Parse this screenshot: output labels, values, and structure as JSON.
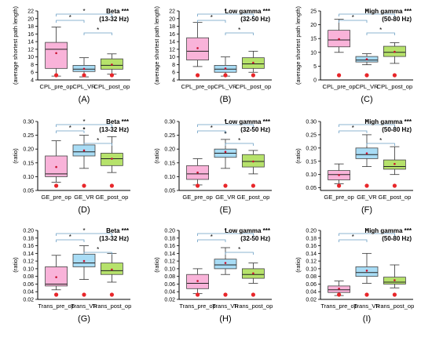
{
  "colors": {
    "pre": "#f9b3d9",
    "vr": "#a8dcf5",
    "post": "#b6e26b",
    "star_dot": "#e8262a",
    "mean_dot": "#c8102e",
    "bracket": "#6a9ec4"
  },
  "chart_data": [
    {
      "type": "box",
      "panel_label": "(A)",
      "band": "Beta",
      "band_stars": "***",
      "band_range": "(13-32 Hz)",
      "ylabel": "(average shortest path length)",
      "ylim": [
        4,
        22
      ],
      "yticks": [
        4,
        6,
        8,
        10,
        12,
        14,
        16,
        18,
        20,
        22
      ],
      "categories": [
        "CPL_pre_op",
        "CPL_VR",
        "CPL_post_op"
      ],
      "boxes": [
        {
          "min": 5,
          "q1": 7,
          "median": 12,
          "q3": 13.8,
          "max": 17.8,
          "mean": 11
        },
        {
          "min": 4.8,
          "q1": 6.2,
          "median": 6.8,
          "q3": 7.8,
          "max": 9.8,
          "mean": 6.9
        },
        {
          "min": 5.5,
          "q1": 6.8,
          "median": 7.8,
          "q3": 9.5,
          "max": 10.8,
          "mean": 8
        }
      ],
      "outliers": [
        [],
        [],
        []
      ],
      "brackets": [
        [
          0,
          1
        ],
        [
          0,
          2
        ],
        [
          1,
          2
        ]
      ],
      "bracket_symbols": [
        "*",
        "*",
        "*"
      ]
    },
    {
      "type": "box",
      "panel_label": "(B)",
      "band": "Low gamma",
      "band_stars": "***",
      "band_range": "(32-50 Hz)",
      "ylabel": "(average shortest path length)",
      "ylim": [
        4,
        22
      ],
      "yticks": [
        4,
        6,
        8,
        10,
        12,
        14,
        16,
        18,
        20,
        22
      ],
      "categories": [
        "CPL_pre_op",
        "CPL_VR",
        "CPL_post_op"
      ],
      "boxes": [
        {
          "min": 7.5,
          "q1": 9.2,
          "median": 11.5,
          "q3": 15,
          "max": 19,
          "mean": 12.3
        },
        {
          "min": 5,
          "q1": 6,
          "median": 6.8,
          "q3": 7.8,
          "max": 10,
          "mean": 7
        },
        {
          "min": 6,
          "q1": 7,
          "median": 8.2,
          "q3": 9.8,
          "max": 11.5,
          "mean": 8.5
        }
      ],
      "outliers": [
        [],
        [],
        []
      ],
      "brackets": [
        [
          0,
          1
        ],
        [
          0,
          2
        ],
        [
          1,
          2
        ]
      ],
      "bracket_symbols": [
        "*",
        "*",
        "*"
      ]
    },
    {
      "type": "box",
      "panel_label": "(C)",
      "band": "High gamma",
      "band_stars": "***",
      "band_range": "(50-80 Hz)",
      "ylabel": "(average shortest path length)",
      "ylim": [
        0,
        25
      ],
      "yticks": [
        0,
        5,
        10,
        15,
        20,
        25
      ],
      "categories": [
        "CPL_pre_op",
        "CPL_VR",
        "CPL_post_op"
      ],
      "boxes": [
        {
          "min": 10,
          "q1": 12,
          "median": 14.5,
          "q3": 18,
          "max": 22,
          "mean": 14.8
        },
        {
          "min": 5.5,
          "q1": 6.5,
          "median": 7.2,
          "q3": 8.5,
          "max": 9.5,
          "mean": 7.5
        },
        {
          "min": 6,
          "q1": 8.5,
          "median": 10,
          "q3": 12.2,
          "max": 13.5,
          "mean": 10.2
        }
      ],
      "outliers": [
        [],
        [],
        []
      ],
      "brackets": [
        [
          0,
          1
        ],
        [
          0,
          2
        ],
        [
          1,
          2
        ]
      ],
      "bracket_symbols": [
        "*",
        "*",
        "*"
      ]
    },
    {
      "type": "box",
      "panel_label": "(D)",
      "band": "Beta",
      "band_stars": "***",
      "band_range": "(13-32 Hz)",
      "ylabel": "(ratio)",
      "ylim": [
        0.05,
        0.3
      ],
      "yticks": [
        0.05,
        0.1,
        0.15,
        0.2,
        0.25,
        0.3
      ],
      "categories": [
        "GE_pre_op",
        "GE_VR",
        "GE_post_op"
      ],
      "boxes": [
        {
          "min": 0.08,
          "q1": 0.1,
          "median": 0.11,
          "q3": 0.175,
          "max": 0.23,
          "mean": 0.135
        },
        {
          "min": 0.13,
          "q1": 0.175,
          "median": 0.19,
          "q3": 0.215,
          "max": 0.25,
          "mean": 0.195
        },
        {
          "min": 0.115,
          "q1": 0.14,
          "median": 0.165,
          "q3": 0.185,
          "max": 0.245,
          "mean": 0.165
        }
      ],
      "outliers": [
        [],
        [
          0.275
        ],
        []
      ],
      "brackets": [
        [
          0,
          1
        ],
        [
          0,
          2
        ],
        [
          1,
          2
        ]
      ],
      "bracket_symbols": [
        "*",
        "*",
        "*"
      ]
    },
    {
      "type": "box",
      "panel_label": "(E)",
      "band": "Low gamma",
      "band_stars": "***",
      "band_range": "(32-50 Hz)",
      "ylabel": "(ratio)",
      "ylim": [
        0.05,
        0.3
      ],
      "yticks": [
        0.05,
        0.1,
        0.15,
        0.2,
        0.25,
        0.3
      ],
      "categories": [
        "GE_pre_op",
        "GE_VR",
        "GE_post_op"
      ],
      "boxes": [
        {
          "min": 0.07,
          "q1": 0.09,
          "median": 0.11,
          "q3": 0.14,
          "max": 0.165,
          "mean": 0.115
        },
        {
          "min": 0.13,
          "q1": 0.17,
          "median": 0.185,
          "q3": 0.2,
          "max": 0.235,
          "mean": 0.19
        },
        {
          "min": 0.11,
          "q1": 0.135,
          "median": 0.155,
          "q3": 0.18,
          "max": 0.195,
          "mean": 0.155
        }
      ],
      "outliers": [
        [],
        [
          0.26
        ],
        []
      ],
      "brackets": [
        [
          0,
          1
        ],
        [
          0,
          2
        ],
        [
          1,
          2
        ]
      ],
      "bracket_symbols": [
        "*",
        "*",
        "*"
      ]
    },
    {
      "type": "box",
      "panel_label": "(F)",
      "band": "High gamma",
      "band_stars": "***",
      "band_range": "(50-80 Hz)",
      "ylabel": "(ratio)",
      "ylim": [
        0.04,
        0.3
      ],
      "yticks": [
        0.05,
        0.1,
        0.15,
        0.2,
        0.25,
        0.3
      ],
      "categories": [
        "GE_pre_op",
        "GE_VR",
        "GE_post_op"
      ],
      "boxes": [
        {
          "min": 0.065,
          "q1": 0.08,
          "median": 0.1,
          "q3": 0.115,
          "max": 0.14,
          "mean": 0.098
        },
        {
          "min": 0.13,
          "q1": 0.16,
          "median": 0.175,
          "q3": 0.2,
          "max": 0.25,
          "mean": 0.18
        },
        {
          "min": 0.1,
          "q1": 0.12,
          "median": 0.13,
          "q3": 0.155,
          "max": 0.205,
          "mean": 0.14
        }
      ],
      "outliers": [
        [],
        [],
        []
      ],
      "brackets": [
        [
          0,
          1
        ],
        [
          0,
          2
        ],
        [
          1,
          2
        ]
      ],
      "bracket_symbols": [
        "*",
        "*",
        "*"
      ]
    },
    {
      "type": "box",
      "panel_label": "(G)",
      "band": "Beta",
      "band_stars": "***",
      "band_range": "(13-32 Hz)",
      "ylabel": "(ratio)",
      "ylim": [
        0.02,
        0.2
      ],
      "yticks": [
        0.02,
        0.04,
        0.06,
        0.08,
        0.1,
        0.12,
        0.14,
        0.16,
        0.18,
        0.2
      ],
      "categories": [
        "Trans_pre_op",
        "Trans_VR",
        "Trans_post_op"
      ],
      "boxes": [
        {
          "min": 0.045,
          "q1": 0.055,
          "median": 0.06,
          "q3": 0.105,
          "max": 0.135,
          "mean": 0.078
        },
        {
          "min": 0.072,
          "q1": 0.105,
          "median": 0.115,
          "q3": 0.138,
          "max": 0.16,
          "mean": 0.12
        },
        {
          "min": 0.065,
          "q1": 0.085,
          "median": 0.095,
          "q3": 0.115,
          "max": 0.14,
          "mean": 0.098
        }
      ],
      "outliers": [
        [],
        [],
        []
      ],
      "brackets": [
        [
          0,
          1
        ],
        [
          0,
          2
        ],
        [
          1,
          2
        ]
      ],
      "bracket_symbols": [
        "*",
        "*",
        "*"
      ]
    },
    {
      "type": "box",
      "panel_label": "(H)",
      "band": "Low gamma",
      "band_stars": "***",
      "band_range": "(32-50 Hz)",
      "ylabel": "(ratio)",
      "ylim": [
        0.02,
        0.2
      ],
      "yticks": [
        0.02,
        0.04,
        0.06,
        0.08,
        0.1,
        0.12,
        0.14,
        0.16,
        0.18,
        0.2
      ],
      "categories": [
        "Trans_pre_op",
        "Trans_VR",
        "Trans_post_op"
      ],
      "boxes": [
        {
          "min": 0.035,
          "q1": 0.048,
          "median": 0.062,
          "q3": 0.085,
          "max": 0.1,
          "mean": 0.068
        },
        {
          "min": 0.085,
          "q1": 0.1,
          "median": 0.11,
          "q3": 0.125,
          "max": 0.155,
          "mean": 0.115
        },
        {
          "min": 0.062,
          "q1": 0.075,
          "median": 0.085,
          "q3": 0.1,
          "max": 0.115,
          "mean": 0.088
        }
      ],
      "outliers": [
        [],
        [],
        []
      ],
      "brackets": [
        [
          0,
          1
        ],
        [
          0,
          2
        ],
        [
          1,
          2
        ]
      ],
      "bracket_symbols": [
        "*",
        "*",
        "*"
      ]
    },
    {
      "type": "box",
      "panel_label": "(I)",
      "band": "High gamma",
      "band_stars": "***",
      "band_range": "(50-80 Hz)",
      "ylabel": "(ratio)",
      "ylim": [
        0.02,
        0.2
      ],
      "yticks": [
        0.02,
        0.04,
        0.06,
        0.08,
        0.1,
        0.12,
        0.14,
        0.16,
        0.18,
        0.2
      ],
      "categories": [
        "Trans_pre_op",
        "Trans_VR",
        "Trans_post_op"
      ],
      "boxes": [
        {
          "min": 0.03,
          "q1": 0.038,
          "median": 0.045,
          "q3": 0.055,
          "max": 0.068,
          "mean": 0.048
        },
        {
          "min": 0.062,
          "q1": 0.08,
          "median": 0.09,
          "q3": 0.105,
          "max": 0.14,
          "mean": 0.095
        },
        {
          "min": 0.05,
          "q1": 0.06,
          "median": 0.065,
          "q3": 0.078,
          "max": 0.11,
          "mean": 0.07
        }
      ],
      "outliers": [
        [],
        [],
        []
      ],
      "brackets": [
        [
          0,
          1
        ],
        [
          0,
          2
        ]
      ],
      "bracket_symbols": [
        "*",
        "*"
      ]
    }
  ]
}
